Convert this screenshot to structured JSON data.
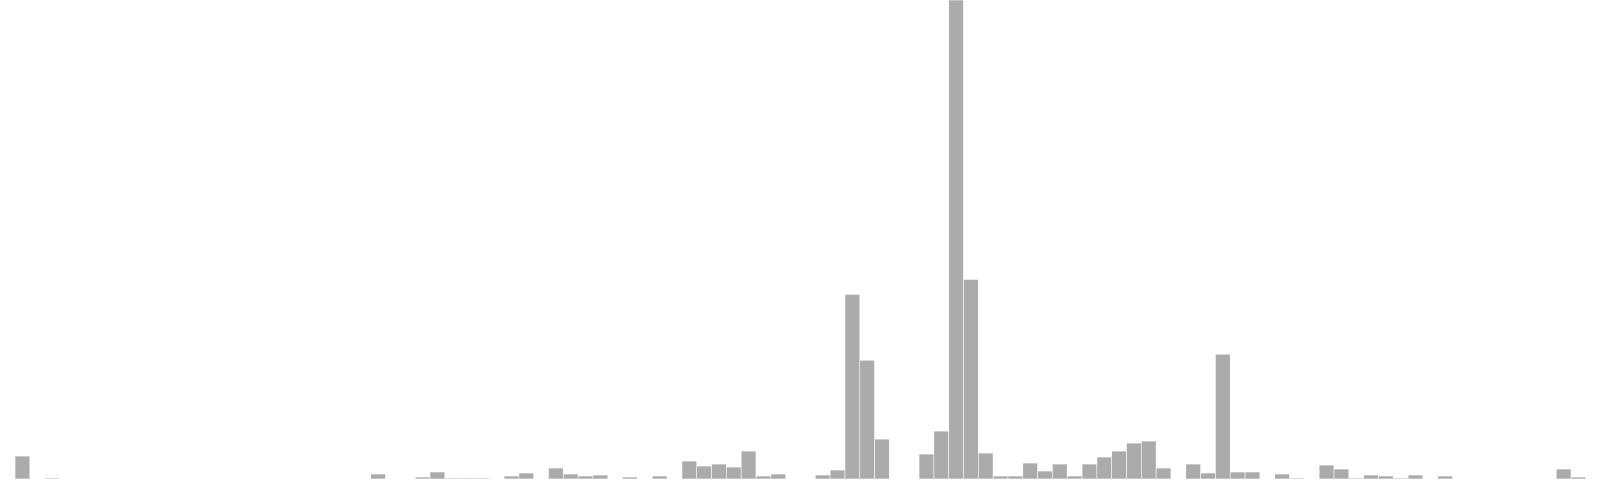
{
  "chart_data": {
    "type": "bar",
    "title": "",
    "xlabel": "",
    "ylabel": "",
    "grid": false,
    "legend": "none",
    "bar_color": "#ababab",
    "bar_edge_color": "#ffffff",
    "ylim": [
      0,
      480
    ],
    "values": [
      23,
      0,
      1,
      0,
      0,
      0,
      0,
      0,
      0,
      0,
      0,
      0,
      0,
      0,
      0,
      0,
      0,
      0,
      0,
      0,
      0,
      0,
      0,
      0,
      5,
      0,
      0,
      2,
      7,
      1,
      1,
      1,
      0,
      3,
      6,
      0,
      11,
      5,
      3,
      4,
      0,
      2,
      0,
      3,
      0,
      18,
      13,
      15,
      12,
      28,
      3,
      5,
      0,
      0,
      4,
      9,
      185,
      119,
      40,
      0,
      0,
      25,
      48,
      480,
      200,
      26,
      3,
      3,
      16,
      8,
      15,
      3,
      15,
      22,
      28,
      36,
      38,
      11,
      0,
      15,
      6,
      125,
      7,
      7,
      0,
      5,
      1,
      0,
      14,
      10,
      1,
      4,
      3,
      1,
      4,
      0,
      3,
      0,
      0,
      0,
      0,
      0,
      0,
      0,
      10,
      2
    ]
  }
}
